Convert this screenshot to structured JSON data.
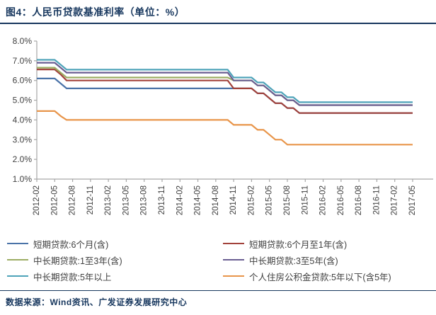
{
  "header": {
    "title": "图4：人民币贷款基准利率（单位：%）"
  },
  "footer": {
    "source": "数据来源：Wind资讯、广发证券发展研究中心"
  },
  "colors": {
    "navy": "#17375E",
    "axis": "#A6A6A6",
    "tick_text": "#404040",
    "legend_text": "#3F3F3F"
  },
  "chart_data": {
    "type": "line",
    "title": "人民币贷款基准利率",
    "unit": "%",
    "grid": false,
    "legend_position": "bottom",
    "x_range": [
      "2012-02",
      "2017-05"
    ],
    "x_frequency": "monthly",
    "x_tick_every": 3,
    "x_tick_labels": [
      "2012-02",
      "2012-05",
      "2012-08",
      "2012-11",
      "2013-02",
      "2013-05",
      "2013-08",
      "2013-11",
      "2014-02",
      "2014-05",
      "2014-08",
      "2014-11",
      "2015-02",
      "2015-05",
      "2015-08",
      "2015-11",
      "2016-02",
      "2016-05",
      "2016-08",
      "2016-11",
      "2017-02",
      "2017-05"
    ],
    "ylim": [
      1.0,
      8.0
    ],
    "y_tick_step": 1.0,
    "y_tick_labels": [
      "8.0%",
      "7.0%",
      "6.0%",
      "5.0%",
      "4.0%",
      "3.0%",
      "2.0%",
      "1.0%"
    ],
    "series": [
      {
        "name": "短期贷款:6个月(含)",
        "color": "#4A73A8",
        "values": [
          6.1,
          6.1,
          6.1,
          6.1,
          5.85,
          5.6,
          5.6,
          5.6,
          5.6,
          5.6,
          5.6,
          5.6,
          5.6,
          5.6,
          5.6,
          5.6,
          5.6,
          5.6,
          5.6,
          5.6,
          5.6,
          5.6,
          5.6,
          5.6,
          5.6,
          5.6,
          5.6,
          5.6,
          5.6,
          5.6,
          5.6,
          5.6,
          5.6,
          5.6,
          5.6,
          5.6,
          5.6,
          5.35,
          5.35,
          5.1,
          4.85,
          4.85,
          4.6,
          4.6,
          4.35,
          4.35,
          4.35,
          4.35,
          4.35,
          4.35,
          4.35,
          4.35,
          4.35,
          4.35,
          4.35,
          4.35,
          4.35,
          4.35,
          4.35,
          4.35,
          4.35,
          4.35,
          4.35,
          4.35
        ]
      },
      {
        "name": "短期贷款:6个月至1年(含)",
        "color": "#A2423B",
        "values": [
          6.56,
          6.56,
          6.56,
          6.56,
          6.31,
          6.0,
          6.0,
          6.0,
          6.0,
          6.0,
          6.0,
          6.0,
          6.0,
          6.0,
          6.0,
          6.0,
          6.0,
          6.0,
          6.0,
          6.0,
          6.0,
          6.0,
          6.0,
          6.0,
          6.0,
          6.0,
          6.0,
          6.0,
          6.0,
          6.0,
          6.0,
          6.0,
          6.0,
          5.6,
          5.6,
          5.6,
          5.6,
          5.35,
          5.35,
          5.1,
          4.85,
          4.85,
          4.6,
          4.6,
          4.35,
          4.35,
          4.35,
          4.35,
          4.35,
          4.35,
          4.35,
          4.35,
          4.35,
          4.35,
          4.35,
          4.35,
          4.35,
          4.35,
          4.35,
          4.35,
          4.35,
          4.35,
          4.35,
          4.35
        ]
      },
      {
        "name": "中长期贷款:1至3年(含)",
        "color": "#9CAD63",
        "values": [
          6.65,
          6.65,
          6.65,
          6.65,
          6.4,
          6.15,
          6.15,
          6.15,
          6.15,
          6.15,
          6.15,
          6.15,
          6.15,
          6.15,
          6.15,
          6.15,
          6.15,
          6.15,
          6.15,
          6.15,
          6.15,
          6.15,
          6.15,
          6.15,
          6.15,
          6.15,
          6.15,
          6.15,
          6.15,
          6.15,
          6.15,
          6.15,
          6.15,
          6.0,
          6.0,
          6.0,
          6.0,
          5.75,
          5.75,
          5.5,
          5.25,
          5.25,
          5.0,
          5.0,
          4.75,
          4.75,
          4.75,
          4.75,
          4.75,
          4.75,
          4.75,
          4.75,
          4.75,
          4.75,
          4.75,
          4.75,
          4.75,
          4.75,
          4.75,
          4.75,
          4.75,
          4.75,
          4.75,
          4.75
        ]
      },
      {
        "name": "中长期贷款:3至5年(含)",
        "color": "#6A5E92",
        "values": [
          6.9,
          6.9,
          6.9,
          6.9,
          6.65,
          6.4,
          6.4,
          6.4,
          6.4,
          6.4,
          6.4,
          6.4,
          6.4,
          6.4,
          6.4,
          6.4,
          6.4,
          6.4,
          6.4,
          6.4,
          6.4,
          6.4,
          6.4,
          6.4,
          6.4,
          6.4,
          6.4,
          6.4,
          6.4,
          6.4,
          6.4,
          6.4,
          6.4,
          6.0,
          6.0,
          6.0,
          6.0,
          5.75,
          5.75,
          5.5,
          5.25,
          5.25,
          5.0,
          5.0,
          4.75,
          4.75,
          4.75,
          4.75,
          4.75,
          4.75,
          4.75,
          4.75,
          4.75,
          4.75,
          4.75,
          4.75,
          4.75,
          4.75,
          4.75,
          4.75,
          4.75,
          4.75,
          4.75,
          4.75
        ]
      },
      {
        "name": "中长期贷款:5年以上",
        "color": "#4EA3B9",
        "values": [
          7.05,
          7.05,
          7.05,
          7.05,
          6.8,
          6.55,
          6.55,
          6.55,
          6.55,
          6.55,
          6.55,
          6.55,
          6.55,
          6.55,
          6.55,
          6.55,
          6.55,
          6.55,
          6.55,
          6.55,
          6.55,
          6.55,
          6.55,
          6.55,
          6.55,
          6.55,
          6.55,
          6.55,
          6.55,
          6.55,
          6.55,
          6.55,
          6.55,
          6.15,
          6.15,
          6.15,
          6.15,
          5.9,
          5.9,
          5.65,
          5.4,
          5.4,
          5.15,
          5.15,
          4.9,
          4.9,
          4.9,
          4.9,
          4.9,
          4.9,
          4.9,
          4.9,
          4.9,
          4.9,
          4.9,
          4.9,
          4.9,
          4.9,
          4.9,
          4.9,
          4.9,
          4.9,
          4.9,
          4.9
        ]
      },
      {
        "name": "个人住房公积金贷款:5年以下(含5年)",
        "color": "#E8954A",
        "values": [
          4.45,
          4.45,
          4.45,
          4.45,
          4.2,
          4.0,
          4.0,
          4.0,
          4.0,
          4.0,
          4.0,
          4.0,
          4.0,
          4.0,
          4.0,
          4.0,
          4.0,
          4.0,
          4.0,
          4.0,
          4.0,
          4.0,
          4.0,
          4.0,
          4.0,
          4.0,
          4.0,
          4.0,
          4.0,
          4.0,
          4.0,
          4.0,
          4.0,
          3.75,
          3.75,
          3.75,
          3.75,
          3.5,
          3.5,
          3.25,
          3.0,
          3.0,
          2.75,
          2.75,
          2.75,
          2.75,
          2.75,
          2.75,
          2.75,
          2.75,
          2.75,
          2.75,
          2.75,
          2.75,
          2.75,
          2.75,
          2.75,
          2.75,
          2.75,
          2.75,
          2.75,
          2.75,
          2.75,
          2.75
        ]
      }
    ]
  }
}
